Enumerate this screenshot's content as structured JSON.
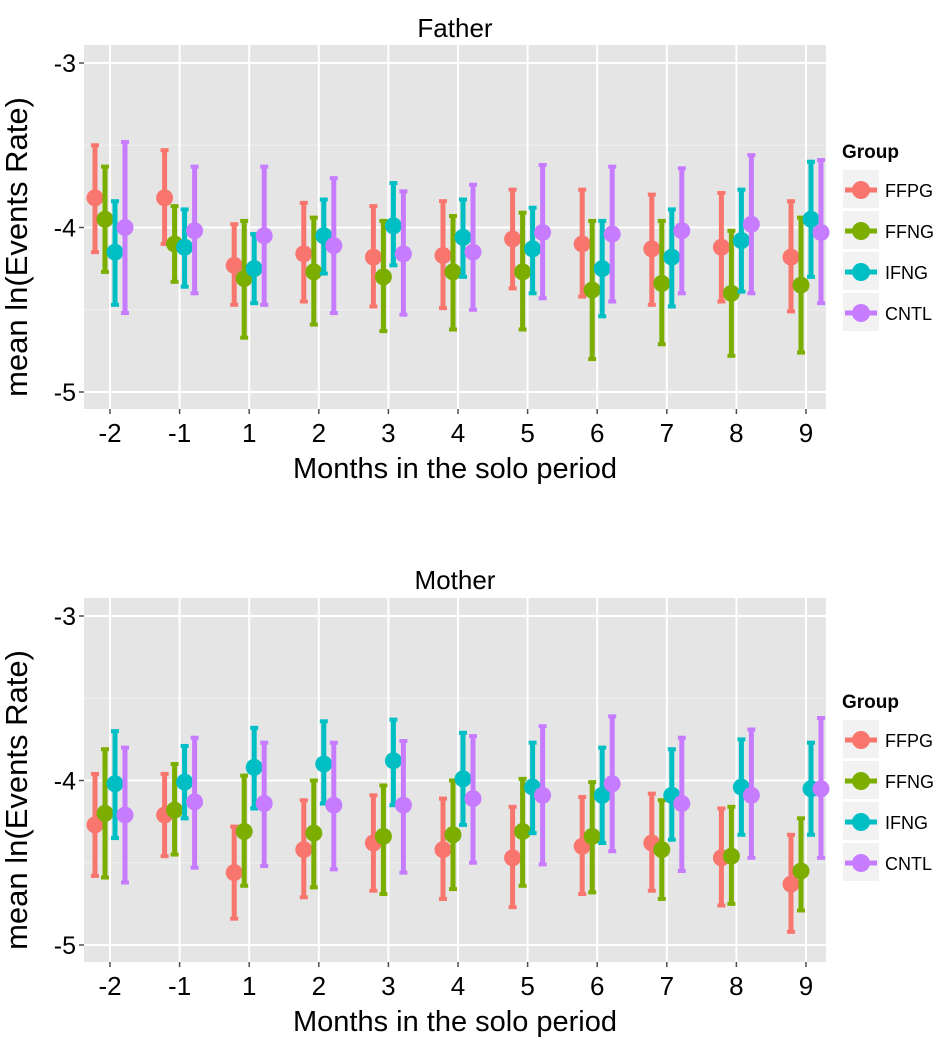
{
  "chart_data": [
    {
      "type": "errorbar",
      "title": "Father",
      "xlabel": "Months in the solo period",
      "ylabel": "mean ln(Events Rate)",
      "categories": [
        "-2",
        "-1",
        "1",
        "2",
        "3",
        "4",
        "5",
        "6",
        "7",
        "8",
        "9"
      ],
      "ylim": [
        -5,
        -3
      ],
      "yticks": [
        "-3",
        "-4",
        "-5"
      ],
      "legend_title": "Group",
      "series": [
        {
          "name": "FFPG",
          "color": "#F8766D",
          "mean": [
            -3.82,
            -3.82,
            -4.23,
            -4.16,
            -4.18,
            -4.17,
            -4.07,
            -4.1,
            -4.13,
            -4.12,
            -4.18
          ],
          "lower": [
            -4.15,
            -4.1,
            -4.47,
            -4.45,
            -4.48,
            -4.49,
            -4.37,
            -4.42,
            -4.47,
            -4.45,
            -4.51
          ],
          "upper": [
            -3.5,
            -3.53,
            -3.98,
            -3.85,
            -3.87,
            -3.84,
            -3.77,
            -3.77,
            -3.8,
            -3.79,
            -3.84
          ]
        },
        {
          "name": "FFNG",
          "color": "#7CAE00",
          "mean": [
            -3.95,
            -4.1,
            -4.31,
            -4.27,
            -4.3,
            -4.27,
            -4.27,
            -4.38,
            -4.34,
            -4.4,
            -4.35
          ],
          "lower": [
            -4.27,
            -4.33,
            -4.67,
            -4.59,
            -4.63,
            -4.62,
            -4.62,
            -4.8,
            -4.71,
            -4.78,
            -4.76
          ],
          "upper": [
            -3.63,
            -3.87,
            -3.96,
            -3.94,
            -3.96,
            -3.93,
            -3.91,
            -3.96,
            -3.96,
            -4.02,
            -3.94
          ]
        },
        {
          "name": "IFNG",
          "color": "#00BFC4",
          "mean": [
            -4.15,
            -4.12,
            -4.25,
            -4.05,
            -3.99,
            -4.06,
            -4.13,
            -4.25,
            -4.18,
            -4.08,
            -3.95
          ],
          "lower": [
            -4.47,
            -4.36,
            -4.46,
            -4.28,
            -4.23,
            -4.3,
            -4.4,
            -4.54,
            -4.48,
            -4.39,
            -4.3
          ],
          "upper": [
            -3.84,
            -3.89,
            -4.04,
            -3.83,
            -3.73,
            -3.83,
            -3.88,
            -3.96,
            -3.89,
            -3.77,
            -3.6
          ]
        },
        {
          "name": "CNTL",
          "color": "#C77CFF",
          "mean": [
            -4.0,
            -4.02,
            -4.05,
            -4.11,
            -4.16,
            -4.15,
            -4.03,
            -4.04,
            -4.02,
            -3.98,
            -4.03
          ],
          "lower": [
            -4.52,
            -4.4,
            -4.47,
            -4.52,
            -4.53,
            -4.5,
            -4.43,
            -4.45,
            -4.4,
            -4.4,
            -4.46
          ],
          "upper": [
            -3.48,
            -3.63,
            -3.63,
            -3.7,
            -3.78,
            -3.74,
            -3.62,
            -3.63,
            -3.64,
            -3.56,
            -3.59
          ]
        }
      ]
    },
    {
      "type": "errorbar",
      "title": "Mother",
      "xlabel": "Months in the solo period",
      "ylabel": "mean ln(Events Rate)",
      "categories": [
        "-2",
        "-1",
        "1",
        "2",
        "3",
        "4",
        "5",
        "6",
        "7",
        "8",
        "9"
      ],
      "ylim": [
        -5,
        -3
      ],
      "yticks": [
        "-3",
        "-4",
        "-5"
      ],
      "legend_title": "Group",
      "series": [
        {
          "name": "FFPG",
          "color": "#F8766D",
          "mean": [
            -4.27,
            -4.21,
            -4.56,
            -4.42,
            -4.38,
            -4.42,
            -4.47,
            -4.4,
            -4.38,
            -4.47,
            -4.63
          ],
          "lower": [
            -4.58,
            -4.46,
            -4.84,
            -4.71,
            -4.67,
            -4.72,
            -4.77,
            -4.69,
            -4.67,
            -4.76,
            -4.92
          ],
          "upper": [
            -3.96,
            -3.96,
            -4.28,
            -4.12,
            -4.09,
            -4.11,
            -4.16,
            -4.1,
            -4.08,
            -4.17,
            -4.33
          ]
        },
        {
          "name": "FFNG",
          "color": "#7CAE00",
          "mean": [
            -4.2,
            -4.18,
            -4.31,
            -4.32,
            -4.34,
            -4.33,
            -4.31,
            -4.34,
            -4.42,
            -4.46,
            -4.55
          ],
          "lower": [
            -4.59,
            -4.45,
            -4.64,
            -4.65,
            -4.69,
            -4.66,
            -4.64,
            -4.68,
            -4.72,
            -4.75,
            -4.79
          ],
          "upper": [
            -3.81,
            -3.9,
            -3.97,
            -4.0,
            -4.03,
            -4.0,
            -3.99,
            -4.01,
            -4.12,
            -4.16,
            -4.23
          ]
        },
        {
          "name": "IFNG",
          "color": "#00BFC4",
          "mean": [
            -4.02,
            -4.01,
            -3.92,
            -3.9,
            -3.88,
            -3.99,
            -4.04,
            -4.09,
            -4.09,
            -4.04,
            -4.05
          ],
          "lower": [
            -4.35,
            -4.23,
            -4.17,
            -4.14,
            -4.15,
            -4.27,
            -4.32,
            -4.38,
            -4.36,
            -4.33,
            -4.33
          ],
          "upper": [
            -3.7,
            -3.79,
            -3.68,
            -3.64,
            -3.63,
            -3.71,
            -3.77,
            -3.8,
            -3.81,
            -3.75,
            -3.77
          ]
        },
        {
          "name": "CNTL",
          "color": "#C77CFF",
          "mean": [
            -4.21,
            -4.13,
            -4.14,
            -4.15,
            -4.15,
            -4.11,
            -4.09,
            -4.02,
            -4.14,
            -4.09,
            -4.05
          ],
          "lower": [
            -4.62,
            -4.53,
            -4.52,
            -4.54,
            -4.56,
            -4.5,
            -4.51,
            -4.43,
            -4.55,
            -4.47,
            -4.47
          ],
          "upper": [
            -3.8,
            -3.74,
            -3.77,
            -3.77,
            -3.76,
            -3.73,
            -3.67,
            -3.61,
            -3.74,
            -3.69,
            -3.62
          ]
        }
      ]
    }
  ]
}
